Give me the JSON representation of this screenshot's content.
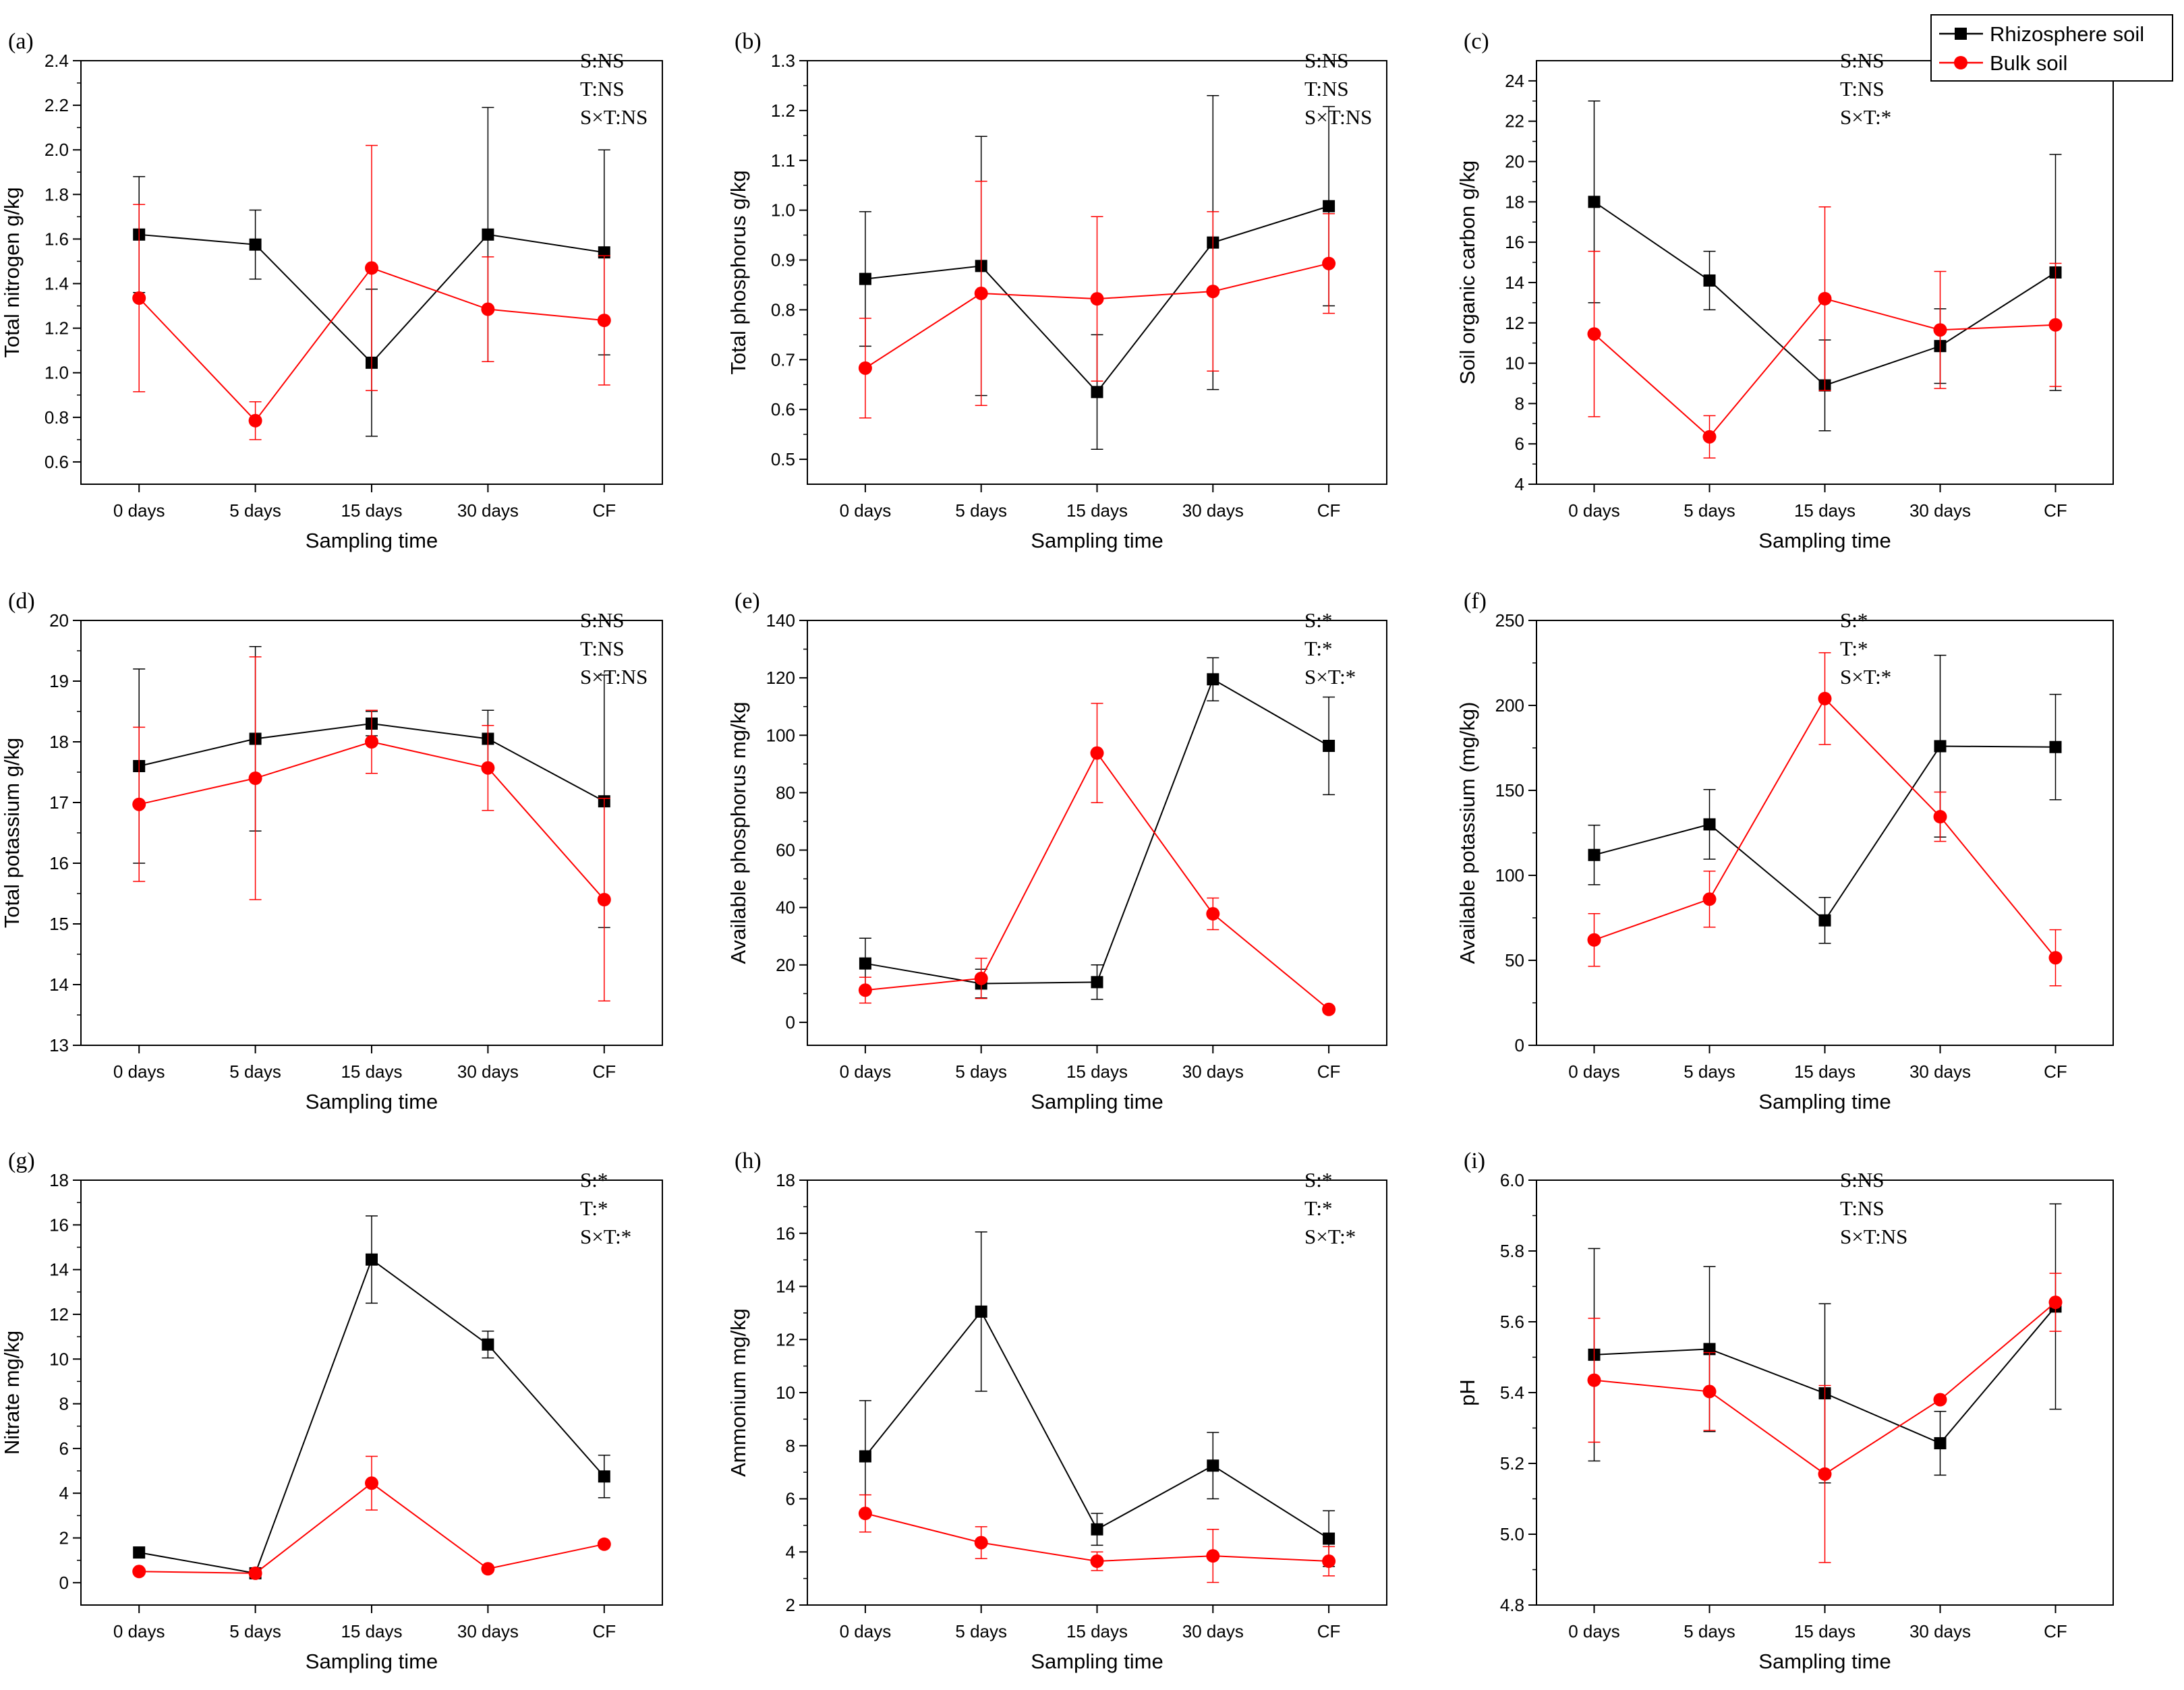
{
  "figure": {
    "legend": {
      "entries": [
        {
          "name": "Rhizosphere soil",
          "color": "#000000",
          "marker": "square"
        },
        {
          "name": "Bulk soil",
          "color": "#ff0000",
          "marker": "circle"
        }
      ]
    }
  },
  "chart_data": [
    {
      "panel": "(a)",
      "type": "line",
      "xlabel": "Sampling time",
      "ylabel": "Total nitrogen g/kg",
      "categories": [
        "0 days",
        "5 days",
        "15 days",
        "30 days",
        "CF"
      ],
      "ylim": [
        0.5,
        2.4
      ],
      "yticks": [
        "0.6",
        "0.8",
        "1.0",
        "1.2",
        "1.4",
        "1.6",
        "1.8",
        "2.0",
        "2.2",
        "2.4"
      ],
      "stats": [
        "S:NS",
        "T:NS",
        "S×T:NS"
      ],
      "series": [
        {
          "name": "Rhizosphere soil",
          "values": [
            1.62,
            1.575,
            1.045,
            1.62,
            1.54
          ],
          "errors": [
            0.26,
            0.155,
            0.33,
            0.57,
            0.46
          ]
        },
        {
          "name": "Bulk soil",
          "values": [
            1.335,
            0.785,
            1.47,
            1.285,
            1.235
          ],
          "errors": [
            0.42,
            0.085,
            0.55,
            0.235,
            0.29
          ]
        }
      ]
    },
    {
      "panel": "(b)",
      "type": "line",
      "xlabel": "Sampling time",
      "ylabel": "Total phosphorus g/kg",
      "categories": [
        "0 days",
        "5 days",
        "15 days",
        "30 days",
        "CF"
      ],
      "ylim": [
        0.45,
        1.3
      ],
      "yticks": [
        "0.5",
        "0.6",
        "0.7",
        "0.8",
        "0.9",
        "1.0",
        "1.1",
        "1.2",
        "1.3"
      ],
      "stats": [
        "S:NS",
        "T:NS",
        "S×T:NS"
      ],
      "series": [
        {
          "name": "Rhizosphere soil",
          "values": [
            0.862,
            0.888,
            0.635,
            0.935,
            1.008
          ],
          "errors": [
            0.135,
            0.26,
            0.115,
            0.295,
            0.2
          ]
        },
        {
          "name": "Bulk soil",
          "values": [
            0.683,
            0.833,
            0.822,
            0.837,
            0.893
          ],
          "errors": [
            0.1,
            0.225,
            0.165,
            0.16,
            0.1
          ]
        }
      ]
    },
    {
      "panel": "(c)",
      "type": "line",
      "xlabel": "Sampling time",
      "ylabel": "Soil organic carbon g/kg",
      "categories": [
        "0 days",
        "5 days",
        "15 days",
        "30 days",
        "CF"
      ],
      "ylim": [
        4,
        25
      ],
      "yticks": [
        "4",
        "6",
        "8",
        "10",
        "12",
        "14",
        "16",
        "18",
        "20",
        "22",
        "24"
      ],
      "stats": [
        "S:NS",
        "T:NS",
        "S×T:*"
      ],
      "series": [
        {
          "name": "Rhizosphere soil",
          "values": [
            18.0,
            14.1,
            8.9,
            10.85,
            14.5
          ],
          "errors": [
            5.0,
            1.45,
            2.25,
            1.85,
            5.85
          ]
        },
        {
          "name": "Bulk soil",
          "values": [
            11.45,
            6.35,
            13.2,
            11.65,
            11.9
          ],
          "errors": [
            4.1,
            1.05,
            4.55,
            2.9,
            3.05
          ]
        }
      ]
    },
    {
      "panel": "(d)",
      "type": "line",
      "xlabel": "Sampling time",
      "ylabel": "Total potassium g/kg",
      "categories": [
        "0 days",
        "5 days",
        "15 days",
        "30 days",
        "CF"
      ],
      "ylim": [
        13,
        20
      ],
      "yticks": [
        "13",
        "14",
        "15",
        "16",
        "17",
        "18",
        "19",
        "20"
      ],
      "stats": [
        "S:NS",
        "T:NS",
        "S×T:NS"
      ],
      "series": [
        {
          "name": "Rhizosphere soil",
          "values": [
            17.6,
            18.05,
            18.3,
            18.05,
            17.02
          ],
          "errors": [
            1.6,
            1.52,
            0.2,
            0.47,
            2.08
          ]
        },
        {
          "name": "Bulk soil",
          "values": [
            16.97,
            17.4,
            18.0,
            17.57,
            15.4
          ],
          "errors": [
            1.27,
            2.0,
            0.52,
            0.7,
            1.67
          ]
        }
      ]
    },
    {
      "panel": "(e)",
      "type": "line",
      "xlabel": "Sampling time",
      "ylabel": "Available phosphorus mg/kg",
      "categories": [
        "0 days",
        "5 days",
        "15 days",
        "30 days",
        "CF"
      ],
      "ylim": [
        -8,
        140
      ],
      "yticks": [
        "0",
        "20",
        "40",
        "60",
        "80",
        "100",
        "120",
        "140"
      ],
      "stats": [
        "S:*",
        "T:*",
        "S×T:*"
      ],
      "series": [
        {
          "name": "Rhizosphere soil",
          "values": [
            20.5,
            13.5,
            14.0,
            119.5,
            96.3
          ],
          "errors": [
            8.8,
            5.0,
            6.0,
            7.5,
            17.0
          ]
        },
        {
          "name": "Bulk soil",
          "values": [
            11.2,
            15.3,
            93.8,
            37.8,
            4.5
          ],
          "errors": [
            4.5,
            7.0,
            17.3,
            5.5,
            1.0
          ]
        }
      ]
    },
    {
      "panel": "(f)",
      "type": "line",
      "xlabel": "Sampling time",
      "ylabel": "Available potassium (mg/kg)",
      "categories": [
        "0 days",
        "5 days",
        "15 days",
        "30 days",
        "CF"
      ],
      "ylim": [
        0,
        250
      ],
      "yticks": [
        "0",
        "50",
        "100",
        "150",
        "200",
        "250"
      ],
      "stats": [
        "S:*",
        "T:*",
        "S×T:*"
      ],
      "series": [
        {
          "name": "Rhizosphere soil",
          "values": [
            112.0,
            130.0,
            73.5,
            176.0,
            175.5
          ],
          "errors": [
            17.5,
            20.5,
            13.5,
            53.5,
            31.0
          ]
        },
        {
          "name": "Bulk soil",
          "values": [
            62.0,
            86.0,
            204.0,
            134.5,
            51.5
          ],
          "errors": [
            15.5,
            16.5,
            27.0,
            14.5,
            16.5
          ]
        }
      ]
    },
    {
      "panel": "(g)",
      "type": "line",
      "xlabel": "Sampling time",
      "ylabel": "Nitrate mg/kg",
      "categories": [
        "0 days",
        "5 days",
        "15 days",
        "30 days",
        "CF"
      ],
      "ylim": [
        -1,
        18
      ],
      "yticks": [
        "0",
        "2",
        "4",
        "6",
        "8",
        "10",
        "12",
        "14",
        "16",
        "18"
      ],
      "stats": [
        "S:*",
        "T:*",
        "S×T:*"
      ],
      "series": [
        {
          "name": "Rhizosphere soil",
          "values": [
            1.35,
            0.42,
            14.45,
            10.65,
            4.75
          ],
          "errors": [
            0.0,
            0.0,
            1.95,
            0.6,
            0.95
          ]
        },
        {
          "name": "Bulk soil",
          "values": [
            0.5,
            0.42,
            4.45,
            0.62,
            1.72
          ],
          "errors": [
            0.0,
            0.0,
            1.2,
            0.0,
            0.0
          ]
        }
      ]
    },
    {
      "panel": "(h)",
      "type": "line",
      "xlabel": "Sampling time",
      "ylabel": "Ammonium mg/kg",
      "categories": [
        "0 days",
        "5 days",
        "15 days",
        "30 days",
        "CF"
      ],
      "ylim": [
        2,
        18
      ],
      "yticks": [
        "2",
        "4",
        "6",
        "8",
        "10",
        "12",
        "14",
        "16",
        "18"
      ],
      "stats": [
        "S:*",
        "T:*",
        "S×T:*"
      ],
      "series": [
        {
          "name": "Rhizosphere soil",
          "values": [
            7.6,
            13.05,
            4.85,
            7.25,
            4.5
          ],
          "errors": [
            2.1,
            3.0,
            0.6,
            1.25,
            1.05
          ]
        },
        {
          "name": "Bulk soil",
          "values": [
            5.45,
            4.35,
            3.65,
            3.85,
            3.65
          ],
          "errors": [
            0.7,
            0.6,
            0.35,
            1.0,
            0.55
          ]
        }
      ]
    },
    {
      "panel": "(i)",
      "type": "line",
      "xlabel": "Sampling time",
      "ylabel": "pH",
      "categories": [
        "0 days",
        "5 days",
        "15 days",
        "30 days",
        "CF"
      ],
      "ylim": [
        4.8,
        6.0
      ],
      "yticks": [
        "4.8",
        "5.0",
        "5.2",
        "5.4",
        "5.6",
        "5.8",
        "6.0"
      ],
      "stats": [
        "S:NS",
        "T:NS",
        "S×T:NS"
      ],
      "series": [
        {
          "name": "Rhizosphere soil",
          "values": [
            5.507,
            5.523,
            5.398,
            5.257,
            5.643
          ],
          "errors": [
            0.3,
            0.233,
            0.253,
            0.09,
            0.29
          ]
        },
        {
          "name": "Bulk soil",
          "values": [
            5.435,
            5.403,
            5.17,
            5.38,
            5.655
          ],
          "errors": [
            0.175,
            0.11,
            0.25,
            0.0,
            0.082
          ]
        }
      ]
    }
  ]
}
